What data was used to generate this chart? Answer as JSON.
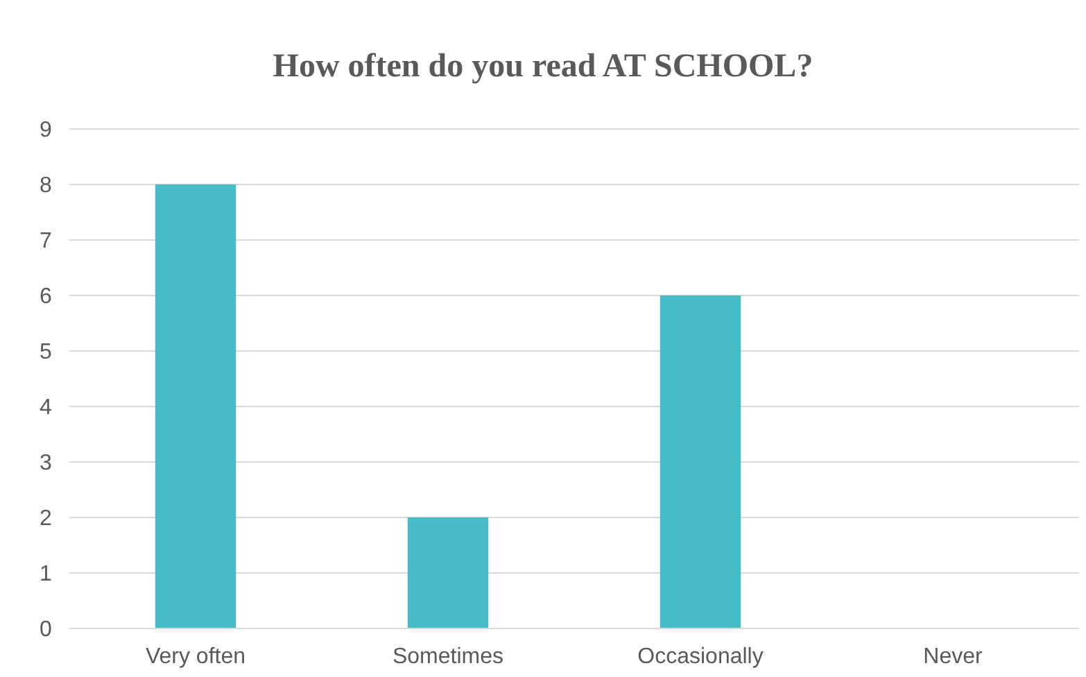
{
  "chart_data": {
    "type": "bar",
    "title": "How often do you read AT SCHOOL?",
    "categories": [
      "Very often",
      "Sometimes",
      "Occasionally",
      "Never"
    ],
    "values": [
      8,
      2,
      6,
      0
    ],
    "color": "#45bdc6",
    "ylim": [
      0,
      9
    ],
    "yticks": [
      0,
      1,
      2,
      3,
      4,
      5,
      6,
      7,
      8,
      9
    ],
    "grid": "y"
  }
}
